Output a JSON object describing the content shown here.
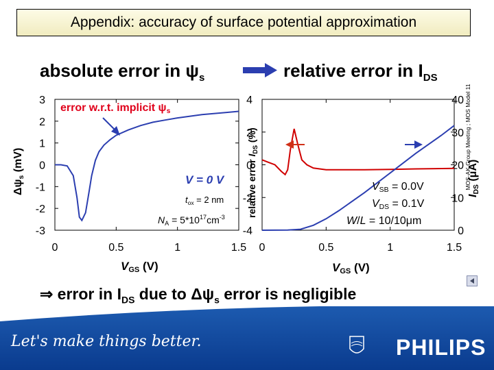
{
  "slide": {
    "title": "Appendix: accuracy of surface potential approximation",
    "left_heading_text": "absolute error in ψ",
    "left_heading_sub": "s",
    "right_heading_text": "relative error in I",
    "right_heading_sub": "DS",
    "conclusion_prefix": "⇒ error in I",
    "conclusion_sub": "DS",
    "conclusion_mid": " due to Δψ",
    "conclusion_sub2": "s",
    "conclusion_suffix": " error is negligible",
    "side_text": "MOS-AK Group Meeting ; MOS Model 11",
    "slogan": "Let's make things better.",
    "brand": "PHILIPS"
  },
  "colors": {
    "curve": "#d00000",
    "accent_blue": "#2b3eb0",
    "arrow_red": "#d03018",
    "footer_blue": "#0a3b8e"
  },
  "chart_data": [
    {
      "type": "line",
      "xlabel": "V",
      "xlabel_sub": "GS",
      "xlabel_unit": "(V)",
      "ylabel": "Δψ",
      "ylabel_sub": "s",
      "ylabel_unit": "(mV)",
      "xlim": [
        0,
        1.5
      ],
      "ylim": [
        -3,
        3
      ],
      "xticks": [
        "0",
        "0.5",
        "1",
        "1.5"
      ],
      "yticks": [
        "3",
        "2",
        "1",
        "0",
        "-1",
        "-2",
        "-3"
      ],
      "annotation": "error w.r.t. implicit ψ",
      "annotation_sub": "s",
      "cond_V": "V = 0 V",
      "cond_tox": "t",
      "cond_tox_sub": "ox",
      "cond_tox_val": " = 2 nm",
      "cond_NA": "N",
      "cond_NA_sub": "A",
      "cond_NA_val": " = 5*10",
      "cond_NA_exp": "17",
      "cond_NA_unit": "cm",
      "cond_NA_unit_exp": "-3",
      "series": [
        {
          "x": [
            0.0,
            0.05,
            0.1,
            0.15,
            0.18,
            0.2,
            0.22,
            0.25,
            0.28,
            0.3,
            0.33,
            0.36,
            0.4,
            0.45,
            0.5,
            0.6,
            0.7,
            0.8,
            0.9,
            1.0,
            1.2,
            1.4,
            1.5
          ],
          "y": [
            0.0,
            0.0,
            -0.05,
            -0.5,
            -1.5,
            -2.4,
            -2.55,
            -2.2,
            -1.2,
            -0.5,
            0.2,
            0.6,
            0.9,
            1.15,
            1.35,
            1.6,
            1.8,
            1.95,
            2.05,
            2.15,
            2.3,
            2.4,
            2.45
          ]
        }
      ]
    },
    {
      "type": "line",
      "xlabel": "V",
      "xlabel_sub": "GS",
      "xlabel_unit": "(V)",
      "ylabel": "relative error ",
      "ylabel_i": "I",
      "ylabel_sub": "DS",
      "ylabel_unit": " (%)",
      "y2label": "I",
      "y2label_sub": "DS",
      "y2label_unit": "(μA)",
      "xlim": [
        0,
        1.5
      ],
      "ylim": [
        -4,
        4
      ],
      "y2lim": [
        0,
        40
      ],
      "xticks": [
        "0",
        "0.5",
        "1",
        "1.5"
      ],
      "yticks": [
        "4",
        "2",
        "0",
        "-2",
        "-4"
      ],
      "y2ticks": [
        "40",
        "30",
        "20",
        "10",
        "0"
      ],
      "cond_VSB": "V",
      "cond_VSB_sub": "SB",
      "cond_VSB_val": " = 0.0V",
      "cond_VDS": "V",
      "cond_VDS_sub": "DS",
      "cond_VDS_val": " = 0.1V",
      "cond_WL": "W",
      "cond_WL_mid": "/",
      "cond_WL_L": "L",
      "cond_WL_val": "  = 10/10μm",
      "series": [
        {
          "axis": "left",
          "x": [
            0.0,
            0.05,
            0.1,
            0.15,
            0.18,
            0.2,
            0.22,
            0.25,
            0.28,
            0.31,
            0.35,
            0.4,
            0.5,
            0.6,
            0.8,
            1.0,
            1.2,
            1.5
          ],
          "y": [
            0.3,
            0.15,
            0.0,
            -0.4,
            -0.6,
            -0.3,
            0.9,
            2.2,
            1.2,
            0.3,
            0.0,
            -0.2,
            -0.3,
            -0.3,
            -0.3,
            -0.28,
            -0.25,
            -0.22
          ]
        },
        {
          "axis": "right",
          "x": [
            0.0,
            0.2,
            0.3,
            0.4,
            0.5,
            0.6,
            0.8,
            1.0,
            1.2,
            1.4,
            1.5
          ],
          "y": [
            0.0,
            0.05,
            0.3,
            1.5,
            3.5,
            6.0,
            11.5,
            17.5,
            23.5,
            29.0,
            32.0
          ]
        }
      ]
    }
  ]
}
